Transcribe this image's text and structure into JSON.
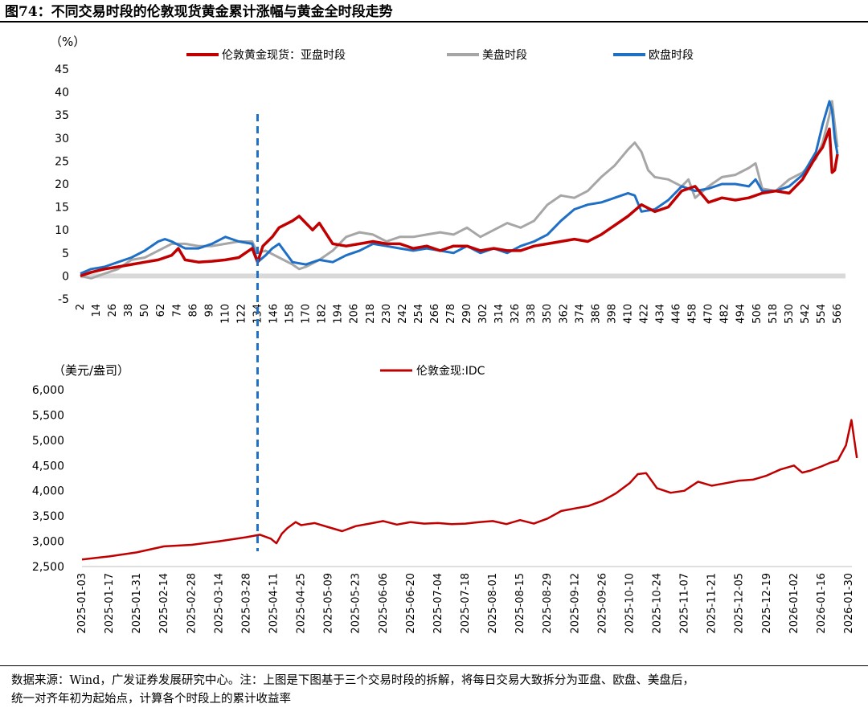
{
  "title": "图74：不同交易时段的伦敦现货黄金累计涨幅与黄金全时段走势",
  "footnote": {
    "line1": "数据来源：Wind，广发证券发展研究中心。注：上图是下图基于三个交易时段的拆解，将每日交易大致拆分为亚盘、欧盘、美盘后，",
    "line2": "统一对齐年初为起始点，计算各个时段上的累计收益率"
  },
  "colors": {
    "asia": "#C00000",
    "us": "#A6A6A6",
    "eu": "#1F6FC5",
    "marker": "#1F6FC5"
  },
  "chart_data": [
    {
      "type": "line",
      "title": "",
      "ylabel": "（%）",
      "xlabel": "",
      "ylim": [
        -5,
        45
      ],
      "yticks": [
        "45",
        "40",
        "35",
        "30",
        "25",
        "20",
        "15",
        "10",
        "5",
        "0",
        "-5"
      ],
      "xticks": [
        "2",
        "14",
        "26",
        "38",
        "50",
        "62",
        "74",
        "86",
        "98",
        "110",
        "122",
        "134",
        "146",
        "158",
        "170",
        "182",
        "194",
        "206",
        "218",
        "230",
        "242",
        "254",
        "266",
        "278",
        "290",
        "302",
        "314",
        "326",
        "338",
        "350",
        "362",
        "374",
        "386",
        "398",
        "410",
        "422",
        "434",
        "446",
        "458",
        "470",
        "482",
        "494",
        "506",
        "518",
        "530",
        "542",
        "554",
        "566"
      ],
      "x_range": [
        2,
        572
      ],
      "marker_x": 134,
      "series": [
        {
          "name": "伦敦黄金现货：亚盘时段",
          "key": "asia",
          "x": [
            2,
            10,
            20,
            30,
            40,
            50,
            60,
            70,
            75,
            80,
            90,
            100,
            110,
            120,
            130,
            134,
            138,
            145,
            150,
            160,
            165,
            170,
            175,
            180,
            190,
            200,
            210,
            220,
            230,
            240,
            250,
            260,
            270,
            280,
            290,
            300,
            310,
            320,
            330,
            340,
            350,
            360,
            370,
            380,
            390,
            400,
            410,
            420,
            430,
            440,
            450,
            455,
            460,
            470,
            480,
            490,
            500,
            510,
            520,
            530,
            540,
            550,
            555,
            560,
            562,
            564,
            566
          ],
          "y": [
            0,
            0.8,
            1.5,
            2.0,
            2.5,
            3.0,
            3.5,
            4.5,
            6.0,
            3.5,
            3.0,
            3.2,
            3.5,
            4.0,
            6.0,
            3.0,
            6.5,
            8.5,
            10.5,
            12.0,
            13.0,
            11.5,
            10.0,
            11.5,
            7.0,
            6.5,
            7.0,
            7.5,
            7.0,
            7.0,
            6.0,
            6.5,
            5.5,
            6.5,
            6.5,
            5.5,
            6.0,
            5.5,
            5.5,
            6.5,
            7.0,
            7.5,
            8.0,
            7.5,
            9.0,
            11.0,
            13.0,
            15.5,
            14.0,
            15.0,
            18.5,
            19.0,
            19.5,
            16.0,
            17.0,
            16.5,
            17.0,
            18.0,
            18.5,
            18.0,
            21.0,
            26.0,
            28.0,
            32.0,
            22.5,
            23.0,
            26.5
          ]
        },
        {
          "name": "美盘时段",
          "key": "us",
          "x": [
            2,
            10,
            20,
            30,
            40,
            50,
            60,
            70,
            80,
            90,
            100,
            110,
            120,
            130,
            134,
            140,
            150,
            160,
            165,
            170,
            180,
            190,
            200,
            210,
            220,
            230,
            240,
            250,
            260,
            270,
            280,
            290,
            300,
            310,
            320,
            330,
            340,
            350,
            360,
            370,
            380,
            390,
            400,
            410,
            415,
            420,
            425,
            430,
            440,
            450,
            455,
            460,
            470,
            480,
            490,
            500,
            505,
            510,
            520,
            530,
            540,
            550,
            555,
            560,
            562,
            564,
            566
          ],
          "y": [
            0,
            -0.5,
            0.5,
            1.5,
            3.5,
            4.0,
            5.5,
            7.0,
            7.0,
            6.5,
            6.5,
            7.0,
            7.5,
            7.5,
            5.0,
            5.5,
            4.0,
            2.5,
            1.5,
            2.0,
            3.5,
            5.5,
            8.5,
            9.5,
            9.0,
            7.5,
            8.5,
            8.5,
            9.0,
            9.5,
            9.0,
            10.5,
            8.5,
            10.0,
            11.5,
            10.5,
            12.0,
            15.5,
            17.5,
            17.0,
            18.5,
            21.5,
            24.0,
            27.5,
            29.0,
            27.0,
            23.0,
            21.5,
            21.0,
            19.5,
            21.0,
            17.0,
            19.5,
            21.5,
            22.0,
            23.5,
            24.5,
            19.0,
            18.5,
            21.0,
            22.5,
            25.5,
            29.0,
            35.0,
            38.0,
            33.0,
            28.0
          ]
        },
        {
          "name": "欧盘时段",
          "key": "eu",
          "x": [
            2,
            10,
            20,
            30,
            40,
            50,
            60,
            65,
            70,
            80,
            90,
            100,
            110,
            120,
            130,
            134,
            140,
            145,
            150,
            155,
            160,
            170,
            180,
            190,
            200,
            210,
            220,
            230,
            240,
            250,
            260,
            270,
            280,
            290,
            300,
            310,
            320,
            330,
            340,
            350,
            360,
            370,
            380,
            390,
            400,
            410,
            415,
            420,
            430,
            440,
            450,
            455,
            460,
            470,
            480,
            490,
            500,
            505,
            510,
            520,
            530,
            540,
            550,
            555,
            560,
            562,
            564,
            566
          ],
          "y": [
            0.5,
            1.5,
            2.0,
            3.0,
            4.0,
            5.5,
            7.5,
            8.0,
            7.5,
            6.0,
            6.0,
            7.0,
            8.5,
            7.5,
            7.0,
            3.0,
            4.5,
            6.0,
            7.0,
            5.0,
            3.0,
            2.5,
            3.5,
            3.0,
            4.5,
            5.5,
            7.0,
            6.5,
            6.0,
            5.5,
            6.0,
            5.5,
            5.0,
            6.5,
            5.0,
            6.0,
            5.0,
            6.5,
            7.5,
            9.0,
            12.0,
            14.5,
            15.5,
            16.0,
            17.0,
            18.0,
            17.5,
            14.0,
            14.5,
            16.5,
            19.5,
            19.0,
            18.5,
            19.0,
            20.0,
            20.0,
            19.5,
            21.0,
            18.5,
            18.5,
            19.5,
            22.0,
            27.0,
            33.0,
            38.0,
            36.0,
            30.0,
            26.5
          ]
        }
      ],
      "marker_rect": {
        "name": "0-line"
      }
    },
    {
      "type": "line",
      "title": "",
      "ylabel": "（美元/盎司）",
      "xlabel": "",
      "ylim": [
        2500,
        6000
      ],
      "yticks": [
        "6,000",
        "5,500",
        "5,000",
        "4,500",
        "4,000",
        "3,500",
        "3,000",
        "2,500"
      ],
      "xticks": [
        "2025-01-03",
        "2025-01-17",
        "2025-01-31",
        "2025-02-14",
        "2025-02-28",
        "2025-03-14",
        "2025-03-28",
        "2025-04-11",
        "2025-04-25",
        "2025-05-09",
        "2025-05-23",
        "2025-06-06",
        "2025-06-20",
        "2025-07-04",
        "2025-07-18",
        "2025-08-01",
        "2025-08-15",
        "2025-08-29",
        "2025-09-12",
        "2025-09-26",
        "2025-10-10",
        "2025-10-24",
        "2025-11-07",
        "2025-11-21",
        "2025-12-05",
        "2025-12-19",
        "2026-01-02",
        "2026-01-16",
        "2026-01-30"
      ],
      "marker_tick_index": 7.0,
      "series": [
        {
          "name": "伦敦金现:IDC",
          "key": "asia",
          "x": [
            0,
            1,
            2,
            3,
            4,
            5,
            6,
            6.5,
            6.9,
            7.1,
            7.3,
            7.5,
            7.8,
            8.0,
            8.5,
            9.0,
            9.5,
            10,
            10.5,
            11,
            11.5,
            12,
            12.5,
            13,
            13.5,
            14,
            14.5,
            15,
            15.5,
            16,
            16.5,
            17,
            17.5,
            18,
            18.5,
            19,
            19.5,
            20,
            20.3,
            20.6,
            21,
            21.5,
            22,
            22.5,
            23,
            23.5,
            24,
            24.5,
            25,
            25.5,
            26,
            26.3,
            26.6,
            27,
            27.3,
            27.6,
            27.9,
            28.1,
            28.3
          ],
          "y": [
            2640,
            2700,
            2780,
            2900,
            2930,
            3000,
            3080,
            3130,
            3050,
            2960,
            3150,
            3260,
            3380,
            3320,
            3360,
            3280,
            3200,
            3300,
            3350,
            3400,
            3330,
            3380,
            3350,
            3360,
            3340,
            3350,
            3380,
            3400,
            3340,
            3420,
            3350,
            3450,
            3600,
            3650,
            3700,
            3800,
            3950,
            4150,
            4330,
            4350,
            4050,
            3960,
            4000,
            4180,
            4100,
            4150,
            4200,
            4220,
            4300,
            4420,
            4500,
            4360,
            4400,
            4480,
            4550,
            4600,
            4900,
            5400,
            4650
          ]
        }
      ]
    }
  ]
}
